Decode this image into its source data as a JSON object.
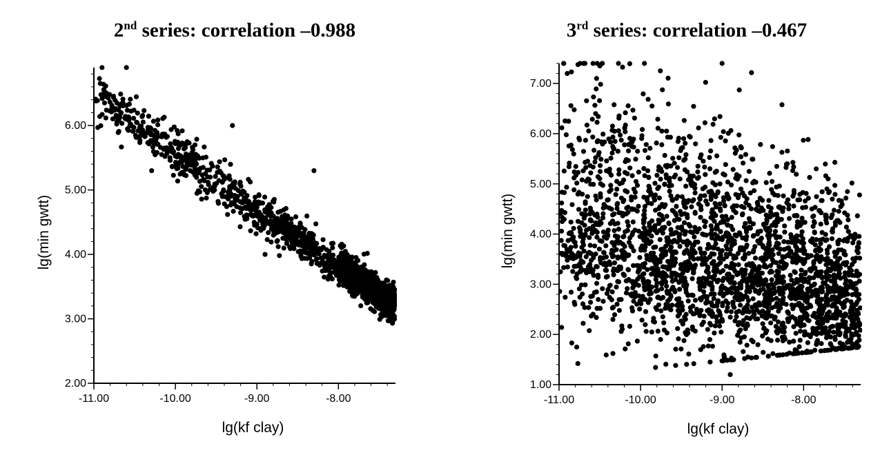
{
  "chart_data": [
    {
      "type": "scatter",
      "title_prefix": "2",
      "title_sup": "nd",
      "title_rest": " series: correlation –0.988",
      "xlabel": "lg(kf clay)",
      "ylabel": "lg(min gwtt)",
      "xlim": [
        -11.0,
        -7.3
      ],
      "ylim": [
        2.0,
        6.9
      ],
      "xticks": [
        -11.0,
        -10.0,
        -9.0,
        -8.0
      ],
      "xtick_labels": [
        "-11.00",
        "-10.00",
        "-9.00",
        "-8.00"
      ],
      "yticks": [
        2.0,
        3.0,
        4.0,
        5.0,
        6.0
      ],
      "ytick_labels": [
        "2.00",
        "3.00",
        "4.00",
        "5.00",
        "6.00"
      ],
      "grid": false,
      "marker_color": "#000000",
      "trend": {
        "x0": -11.0,
        "y0": 6.45,
        "x1": -7.3,
        "y1": 3.2
      },
      "spread": 0.2,
      "outliers": [
        {
          "x": -8.3,
          "y": 5.3
        },
        {
          "x": -9.3,
          "y": 6.0
        },
        {
          "x": -8.9,
          "y": 4.0
        },
        {
          "x": -10.9,
          "y": 6.9
        },
        {
          "x": -10.6,
          "y": 6.9
        }
      ]
    },
    {
      "type": "scatter",
      "title_prefix": "3",
      "title_sup": "rd",
      "title_rest": " series: correlation –0.467",
      "xlabel": "lg(kf clay)",
      "ylabel": "lg(min gwtt)",
      "xlim": [
        -11.0,
        -7.3
      ],
      "ylim": [
        1.0,
        7.4
      ],
      "xticks": [
        -11.0,
        -10.0,
        -9.0,
        -8.0
      ],
      "xtick_labels": [
        "-11.00",
        "-10.00",
        "-9.00",
        "-8.00"
      ],
      "yticks": [
        1.0,
        2.0,
        3.0,
        4.0,
        5.0,
        6.0,
        7.0
      ],
      "ytick_labels": [
        "1.00",
        "2.00",
        "3.00",
        "4.00",
        "5.00",
        "6.00",
        "7.00"
      ],
      "grid": false,
      "marker_color": "#000000",
      "trend": {
        "x0": -11.0,
        "y0": 4.3,
        "x1": -7.3,
        "y1": 2.6
      },
      "spread": 1.2,
      "outliers": [
        {
          "x": -9.0,
          "y": 7.4
        },
        {
          "x": -10.5,
          "y": 7.35
        },
        {
          "x": -10.9,
          "y": 7.2
        },
        {
          "x": -8.2,
          "y": 5.4
        },
        {
          "x": -7.7,
          "y": 5.1
        },
        {
          "x": -8.9,
          "y": 1.2
        }
      ]
    }
  ]
}
